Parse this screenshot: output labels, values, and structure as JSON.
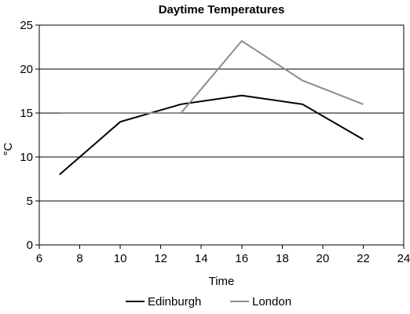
{
  "chart_data": {
    "type": "line",
    "title": "Daytime Temperatures",
    "xlabel": "Time",
    "ylabel": "°C",
    "xlim": [
      6,
      24
    ],
    "ylim": [
      0,
      25
    ],
    "xticks": [
      6,
      8,
      10,
      12,
      14,
      16,
      18,
      20,
      22,
      24
    ],
    "yticks": [
      0,
      5,
      10,
      15,
      20,
      25
    ],
    "grid": "horizontal",
    "legend_position": "bottom",
    "series": [
      {
        "name": "Edinburgh",
        "color": "#000000",
        "points": [
          [
            7,
            8
          ],
          [
            10,
            14
          ],
          [
            13,
            16
          ],
          [
            16,
            17
          ],
          [
            19,
            16
          ],
          [
            22,
            12
          ]
        ]
      },
      {
        "name": "London",
        "color": "#8c8c8c",
        "points": [
          [
            7,
            15
          ],
          [
            10,
            15
          ],
          [
            13,
            15
          ],
          [
            16,
            23.2
          ],
          [
            19,
            18.7
          ],
          [
            22,
            16
          ]
        ]
      }
    ]
  }
}
